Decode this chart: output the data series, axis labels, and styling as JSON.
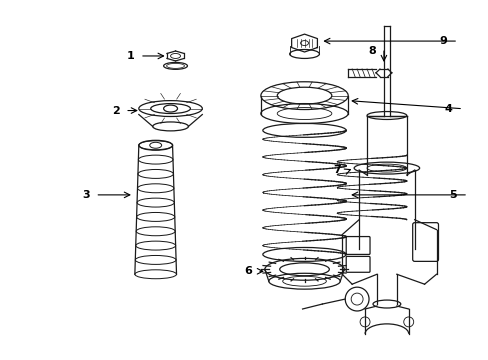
{
  "background_color": "#ffffff",
  "line_color": "#1a1a1a",
  "callout_color": "#000000",
  "fig_width": 4.89,
  "fig_height": 3.6,
  "dpi": 100
}
